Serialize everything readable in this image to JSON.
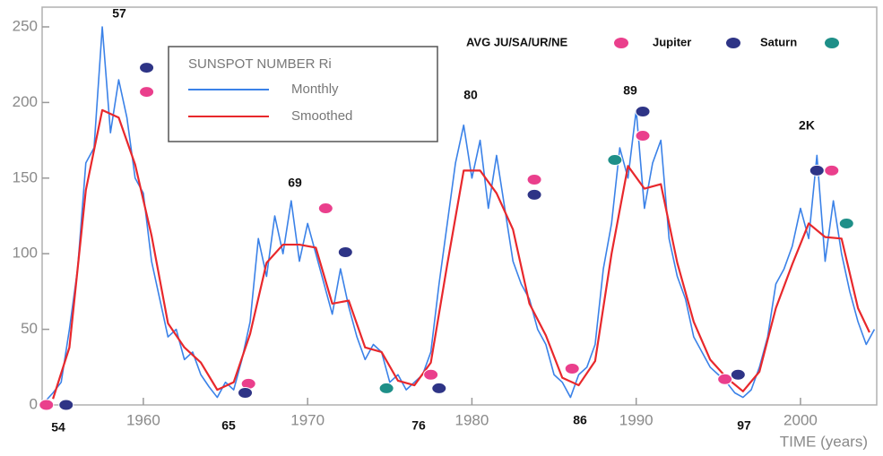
{
  "chart_data": {
    "type": "line",
    "legend_title": "SUNSPOT NUMBER Ri",
    "xlabel": "TIME (years)",
    "xlim": [
      1953.84,
      2004.64
    ],
    "xticks": [
      1960,
      1970,
      1980,
      1990,
      2000
    ],
    "ylim": [
      0,
      250
    ],
    "yticks": [
      0,
      50,
      100,
      150,
      200,
      250
    ],
    "series": [
      {
        "name": "Monthly",
        "color": "#3b82e8",
        "x": [
          1954.0,
          1954.5,
          1955.0,
          1955.5,
          1956.0,
          1956.5,
          1957.0,
          1957.5,
          1958.0,
          1958.5,
          1959.0,
          1959.5,
          1960.0,
          1960.5,
          1961.0,
          1961.5,
          1962.0,
          1962.5,
          1963.0,
          1963.5,
          1964.0,
          1964.5,
          1965.0,
          1965.5,
          1966.0,
          1966.5,
          1967.0,
          1967.5,
          1968.0,
          1968.5,
          1969.0,
          1969.5,
          1970.0,
          1970.5,
          1971.0,
          1971.5,
          1972.0,
          1972.5,
          1973.0,
          1973.5,
          1974.0,
          1974.5,
          1975.0,
          1975.5,
          1976.0,
          1976.5,
          1977.0,
          1977.5,
          1978.0,
          1978.5,
          1979.0,
          1979.5,
          1980.0,
          1980.5,
          1981.0,
          1981.5,
          1982.0,
          1982.5,
          1983.0,
          1983.5,
          1984.0,
          1984.5,
          1985.0,
          1985.5,
          1986.0,
          1986.5,
          1987.0,
          1987.5,
          1988.0,
          1988.5,
          1989.0,
          1989.5,
          1990.0,
          1990.5,
          1991.0,
          1991.5,
          1992.0,
          1992.5,
          1993.0,
          1993.5,
          1994.0,
          1994.5,
          1995.0,
          1995.5,
          1996.0,
          1996.5,
          1997.0,
          1997.5,
          1998.0,
          1998.5,
          1999.0,
          1999.5,
          2000.0,
          2000.5,
          2001.0,
          2001.5,
          2002.0,
          2002.5,
          2003.0,
          2003.5,
          2004.0,
          2004.5
        ],
        "values": [
          2,
          8,
          15,
          50,
          90,
          160,
          170,
          250,
          180,
          215,
          190,
          150,
          140,
          95,
          70,
          45,
          50,
          30,
          35,
          20,
          12,
          5,
          15,
          10,
          30,
          55,
          110,
          85,
          125,
          100,
          135,
          95,
          120,
          100,
          80,
          60,
          90,
          65,
          45,
          30,
          40,
          35,
          15,
          20,
          10,
          15,
          20,
          35,
          80,
          120,
          160,
          185,
          150,
          175,
          130,
          165,
          130,
          95,
          80,
          70,
          50,
          40,
          20,
          15,
          5,
          20,
          25,
          40,
          90,
          120,
          170,
          150,
          195,
          130,
          160,
          175,
          110,
          85,
          70,
          45,
          35,
          25,
          20,
          15,
          8,
          5,
          10,
          25,
          45,
          80,
          90,
          105,
          130,
          110,
          165,
          95,
          135,
          100,
          75,
          55,
          40,
          50
        ]
      },
      {
        "name": "Smoothed",
        "color": "#e8282c",
        "x": [
          1954.5,
          1955.5,
          1956.5,
          1957.5,
          1958.5,
          1959.5,
          1960.5,
          1961.5,
          1962.5,
          1963.5,
          1964.5,
          1965.5,
          1966.5,
          1967.5,
          1968.5,
          1969.5,
          1970.5,
          1971.5,
          1972.5,
          1973.5,
          1974.5,
          1975.5,
          1976.5,
          1977.5,
          1978.5,
          1979.5,
          1980.5,
          1981.5,
          1982.5,
          1983.5,
          1984.5,
          1985.5,
          1986.5,
          1987.5,
          1988.5,
          1989.5,
          1990.5,
          1991.5,
          1992.5,
          1993.5,
          1994.5,
          1995.5,
          1996.5,
          1997.5,
          1998.5,
          1999.5,
          2000.5,
          2001.5,
          2002.5,
          2003.5,
          2004.2
        ],
        "values": [
          4,
          38,
          142,
          195,
          190,
          159,
          112,
          54,
          38,
          28,
          10,
          15,
          47,
          94,
          106,
          106,
          104,
          67,
          69,
          38,
          35,
          16,
          13,
          28,
          93,
          155,
          155,
          140,
          116,
          67,
          46,
          18,
          13,
          29,
          100,
          158,
          143,
          146,
          94,
          55,
          30,
          18,
          9,
          22,
          64,
          93,
          120,
          111,
          110,
          64,
          48
        ]
      }
    ],
    "markers": [
      {
        "name": "AVG JU/SA/UR/NE",
        "color": "#ea3f8c",
        "x": [
          1954.1,
          1960.2,
          1966.4,
          1971.1,
          1977.5,
          1983.8,
          1986.1,
          1990.4,
          1995.4,
          2001.9
        ],
        "values": [
          0,
          207,
          14,
          130,
          20,
          149,
          24,
          178,
          17,
          155
        ]
      },
      {
        "name": "Jupiter",
        "color": "#2e3486",
        "x": [
          1955.3,
          1960.2,
          1966.2,
          1972.3,
          1978.0,
          1983.8,
          1990.4,
          1996.2,
          2001.0
        ],
        "values": [
          0,
          223,
          8,
          101,
          11,
          139,
          194,
          20,
          155
        ]
      },
      {
        "name": "Saturn",
        "color": "#1e8f88",
        "x": [
          1974.8,
          1988.7,
          2002.8
        ],
        "values": [
          11,
          162,
          120
        ]
      }
    ],
    "annotations": [
      "57",
      "54",
      "65",
      "69",
      "76",
      "80",
      "86",
      "89",
      "97",
      "2K"
    ]
  }
}
